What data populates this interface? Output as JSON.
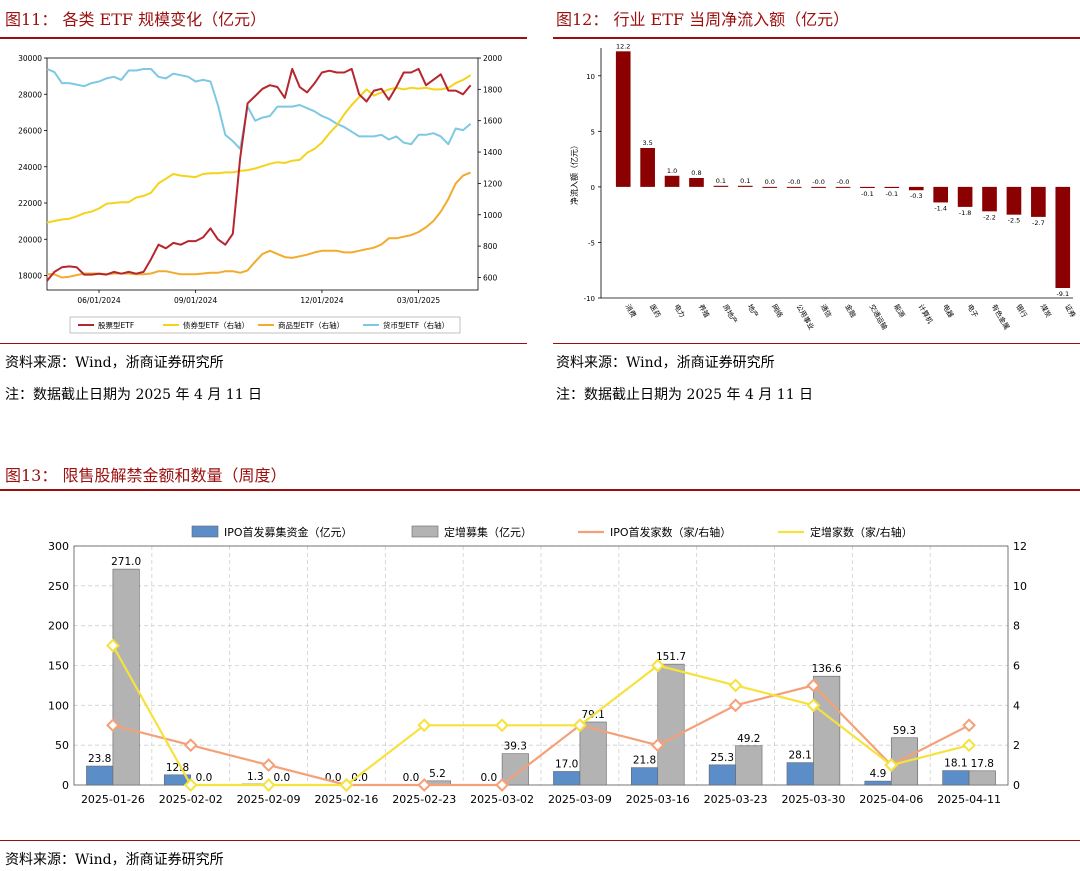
{
  "fig11": {
    "title": "图11： 各类 ETF 规模变化（亿元）",
    "source": "资料来源：Wind，浙商证券研究所",
    "note": "注：数据截止日期为 2025 年 4 月 11 日"
  },
  "fig12": {
    "title": "图12： 行业 ETF 当周净流入额（亿元）",
    "source": "资料来源：Wind，浙商证券研究所",
    "note": "注：数据截止日期为 2025 年 4 月 11 日"
  },
  "fig13": {
    "title": "图13： 限售股解禁金额和数量（周度）",
    "source": "资料来源：Wind，浙商证券研究所"
  },
  "colors": {
    "accent": "#9b0f0f",
    "stock_etf": "#b5272d",
    "bond_etf": "#f4d41a",
    "commodity_etf": "#f2ab2c",
    "money_etf": "#7ec8e3",
    "bar_red": "#8b0000",
    "ipo_bar": "#5b8ec9",
    "placement_bar": "#b3b3b3",
    "ipo_line": "#f4a078",
    "placement_line": "#f6e23c"
  },
  "chart_data": [
    {
      "type": "line",
      "id": "fig11",
      "x_ticks": [
        "06/01/2024",
        "09/01/2024",
        "12/01/2024",
        "03/01/2025"
      ],
      "y_left_ticks": [
        "30000",
        "28000",
        "26000",
        "24000",
        "22000",
        "20000",
        "18000"
      ],
      "y_right_ticks": [
        "2000",
        "1800",
        "1600",
        "1400",
        "1200",
        "1000",
        "800",
        "600"
      ],
      "ylim_left": [
        17200,
        30000
      ],
      "ylim_right": [
        520,
        2000
      ],
      "x_range_weeks": [
        0,
        58
      ],
      "x_tick_weeks": [
        7,
        20,
        37,
        50
      ],
      "legend_position": "bottom",
      "series": [
        {
          "name": "股票型ETF",
          "axis": "left",
          "values": [
            17700,
            18200,
            18450,
            18500,
            18450,
            18050,
            18050,
            18100,
            18050,
            18200,
            18100,
            18200,
            18100,
            18200,
            18900,
            19700,
            19500,
            19800,
            19700,
            19900,
            19900,
            20100,
            20600,
            20000,
            19700,
            20300,
            24500,
            27500,
            27900,
            28300,
            28500,
            28400,
            27800,
            29400,
            28400,
            28100,
            28600,
            29200,
            29300,
            29200,
            29200,
            29400,
            28000,
            27600,
            28200,
            28300,
            27700,
            28400,
            29200,
            29200,
            29400,
            28500,
            28800,
            29100,
            28200,
            28200,
            28000,
            28500
          ]
        },
        {
          "name": "债券型ETF（右轴）",
          "axis": "right",
          "values": [
            950,
            960,
            970,
            975,
            990,
            1010,
            1020,
            1040,
            1070,
            1075,
            1080,
            1080,
            1110,
            1120,
            1140,
            1200,
            1230,
            1260,
            1250,
            1245,
            1240,
            1260,
            1265,
            1265,
            1270,
            1270,
            1280,
            1285,
            1295,
            1310,
            1325,
            1335,
            1330,
            1345,
            1350,
            1395,
            1420,
            1460,
            1520,
            1570,
            1640,
            1700,
            1750,
            1800,
            1760,
            1780,
            1800,
            1810,
            1800,
            1810,
            1805,
            1810,
            1800,
            1800,
            1810,
            1840,
            1860,
            1890
          ]
        },
        {
          "name": "商品型ETF（右轴）",
          "axis": "right",
          "values": [
            620,
            620,
            600,
            605,
            615,
            625,
            625,
            625,
            620,
            625,
            625,
            625,
            620,
            620,
            625,
            640,
            640,
            630,
            620,
            620,
            620,
            625,
            630,
            630,
            640,
            640,
            630,
            645,
            700,
            750,
            770,
            750,
            730,
            725,
            735,
            745,
            760,
            770,
            770,
            770,
            760,
            760,
            770,
            780,
            790,
            810,
            850,
            850,
            860,
            870,
            890,
            920,
            960,
            1020,
            1100,
            1200,
            1250,
            1270
          ]
        },
        {
          "name": "货币型ETF（右轴）",
          "axis": "right",
          "values": [
            1930,
            1910,
            1840,
            1840,
            1830,
            1820,
            1840,
            1850,
            1870,
            1880,
            1860,
            1920,
            1920,
            1930,
            1930,
            1880,
            1870,
            1900,
            1890,
            1880,
            1850,
            1860,
            1850,
            1700,
            1510,
            1470,
            1420,
            1690,
            1600,
            1620,
            1630,
            1690,
            1690,
            1690,
            1700,
            1680,
            1660,
            1630,
            1610,
            1580,
            1560,
            1530,
            1500,
            1500,
            1500,
            1510,
            1480,
            1500,
            1460,
            1450,
            1510,
            1510,
            1520,
            1500,
            1450,
            1550,
            1540,
            1580
          ]
        }
      ]
    },
    {
      "type": "bar",
      "id": "fig12",
      "ylabel": "净流入额（亿元）",
      "ylim": [
        -10,
        12.5
      ],
      "y_ticks": [
        "10",
        "5",
        "0",
        "-5",
        "-10"
      ],
      "categories": [
        "消费",
        "医药",
        "电力",
        "养殖",
        "房地产",
        "地产",
        "网络",
        "公用事业",
        "通信",
        "金融",
        "交通运输",
        "能源",
        "计算机",
        "电器",
        "电子",
        "有色金属",
        "银行",
        "煤炭",
        "证券"
      ],
      "values": [
        12.2,
        3.5,
        1.0,
        0.8,
        0.1,
        0.1,
        0.0,
        -0.0,
        -0.0,
        -0.0,
        -0.1,
        -0.1,
        -0.3,
        -1.4,
        -1.8,
        -2.2,
        -2.5,
        -2.7,
        -9.1
      ],
      "value_labels": [
        "12.2",
        "3.5",
        "1.0",
        "0.8",
        "0.1",
        "0.1",
        "0.0",
        "-0.0",
        "-0.0",
        "-0.0",
        "-0.1",
        "-0.1",
        "-0.3",
        "-1.4",
        "-1.8",
        "-2.2",
        "-2.5",
        "-2.7",
        "-9.1"
      ]
    },
    {
      "type": "bar",
      "id": "fig13",
      "categories": [
        "2025-01-26",
        "2025-02-02",
        "2025-02-09",
        "2025-02-16",
        "2025-02-23",
        "2025-03-02",
        "2025-03-09",
        "2025-03-16",
        "2025-03-23",
        "2025-03-30",
        "2025-04-06",
        "2025-04-11"
      ],
      "ylim_left": [
        0,
        300
      ],
      "ylim_right": [
        0,
        12
      ],
      "y_left_ticks": [
        "300",
        "250",
        "200",
        "150",
        "100",
        "50",
        "0"
      ],
      "y_right_ticks": [
        "12",
        "10",
        "8",
        "6",
        "4",
        "2",
        "0"
      ],
      "grid": true,
      "legend_position": "top",
      "series": [
        {
          "name": "IPO首发募集资金（亿元）",
          "kind": "bar",
          "axis": "left",
          "values": [
            23.8,
            12.8,
            1.3,
            0.0,
            0.0,
            0.0,
            17.0,
            21.8,
            25.3,
            28.1,
            4.9,
            18.1
          ],
          "labels": [
            "23.8",
            "12.8",
            "1.3",
            "0.0",
            "0.0",
            "0.0",
            "17.0",
            "21.8",
            "25.3",
            "28.1",
            "4.9",
            "18.1"
          ]
        },
        {
          "name": "定增募集（亿元）",
          "kind": "bar",
          "axis": "left",
          "values": [
            271.0,
            0.0,
            0.0,
            0.0,
            5.2,
            39.3,
            79.1,
            151.7,
            49.2,
            136.6,
            59.3,
            17.8
          ],
          "labels": [
            "271.0",
            "0.0",
            "0.0",
            "0.0",
            "5.2",
            "39.3",
            "79.1",
            "151.7",
            "49.2",
            "136.6",
            "59.3",
            "17.8"
          ]
        },
        {
          "name": "IPO首发家数（家/右轴）",
          "kind": "line",
          "axis": "right",
          "values": [
            3,
            2,
            1,
            0,
            0,
            0,
            3,
            2,
            4,
            5,
            1,
            3
          ]
        },
        {
          "name": "定增家数（家/右轴）",
          "kind": "line",
          "axis": "right",
          "values": [
            7,
            0,
            0,
            0,
            3,
            3,
            3,
            6,
            5,
            4,
            1,
            2
          ]
        }
      ]
    }
  ]
}
